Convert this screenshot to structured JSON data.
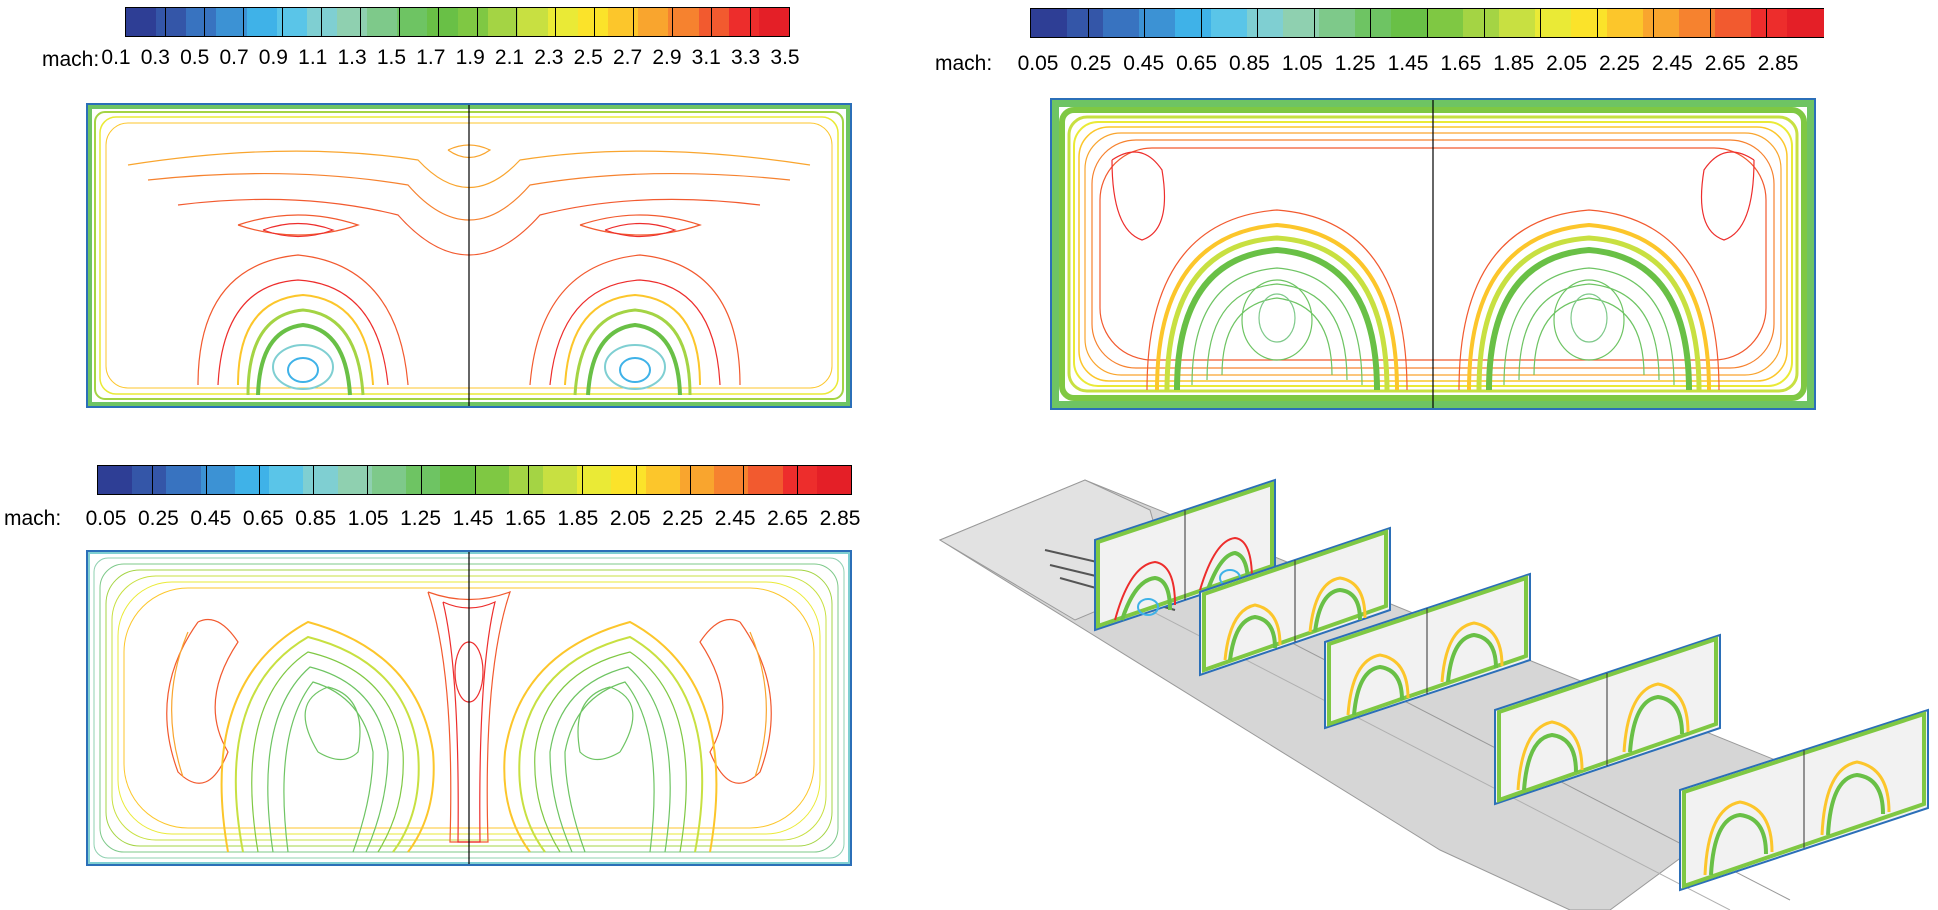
{
  "colormap": [
    "#2e3e95",
    "#3456a8",
    "#3873c0",
    "#3c92d4",
    "#3fb2e8",
    "#5ac5e8",
    "#7fcfd2",
    "#8fd0b0",
    "#7ec98a",
    "#6ec463",
    "#69c046",
    "#7fc843",
    "#a4d444",
    "#c8e041",
    "#eaea36",
    "#fbe32a",
    "#fcc62b",
    "#f9a52e",
    "#f6822f",
    "#f25a2f",
    "#ed2d2c",
    "#e41f27"
  ],
  "panels": [
    {
      "id": "top-left",
      "scalar_label": "mach:",
      "ticks": [
        "0.1",
        "0.3",
        "0.5",
        "0.7",
        "0.9",
        "1.1",
        "1.3",
        "1.5",
        "1.7",
        "1.9",
        "2.1",
        "2.3",
        "2.5",
        "2.7",
        "2.9",
        "3.1",
        "3.3",
        "3.5"
      ]
    },
    {
      "id": "top-right",
      "scalar_label": "mach:",
      "ticks": [
        "0.05",
        "0.25",
        "0.45",
        "0.65",
        "0.85",
        "1.05",
        "1.25",
        "1.45",
        "1.65",
        "1.85",
        "2.05",
        "2.25",
        "2.45",
        "2.65",
        "2.85"
      ]
    },
    {
      "id": "bottom-left",
      "scalar_label": "mach:",
      "ticks": [
        "0.05",
        "0.25",
        "0.45",
        "0.65",
        "0.85",
        "1.05",
        "1.25",
        "1.45",
        "1.65",
        "1.85",
        "2.05",
        "2.25",
        "2.45",
        "2.65",
        "2.85"
      ]
    }
  ]
}
